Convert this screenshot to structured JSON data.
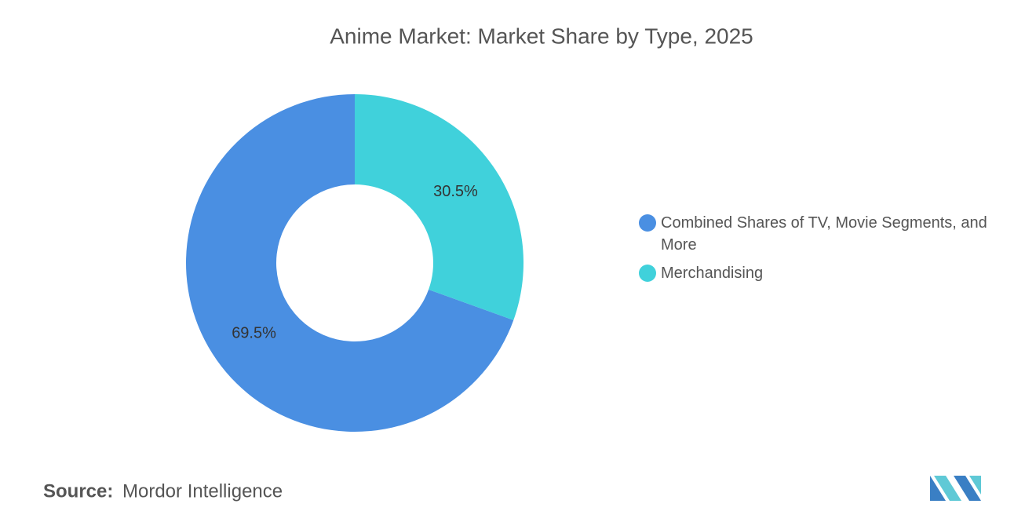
{
  "chart_data": {
    "type": "donut",
    "title": "Anime Market: Market Share by Type, 2025",
    "categories": [
      "Combined Shares of TV, Movie Segments, and More",
      "Merchandising"
    ],
    "values": [
      69.5,
      30.5
    ],
    "value_labels": [
      "69.5%",
      "30.5%"
    ],
    "colors": [
      "#4a8fe2",
      "#40d1db"
    ]
  },
  "source": {
    "label": "Source:",
    "text": "Mordor Intelligence"
  }
}
